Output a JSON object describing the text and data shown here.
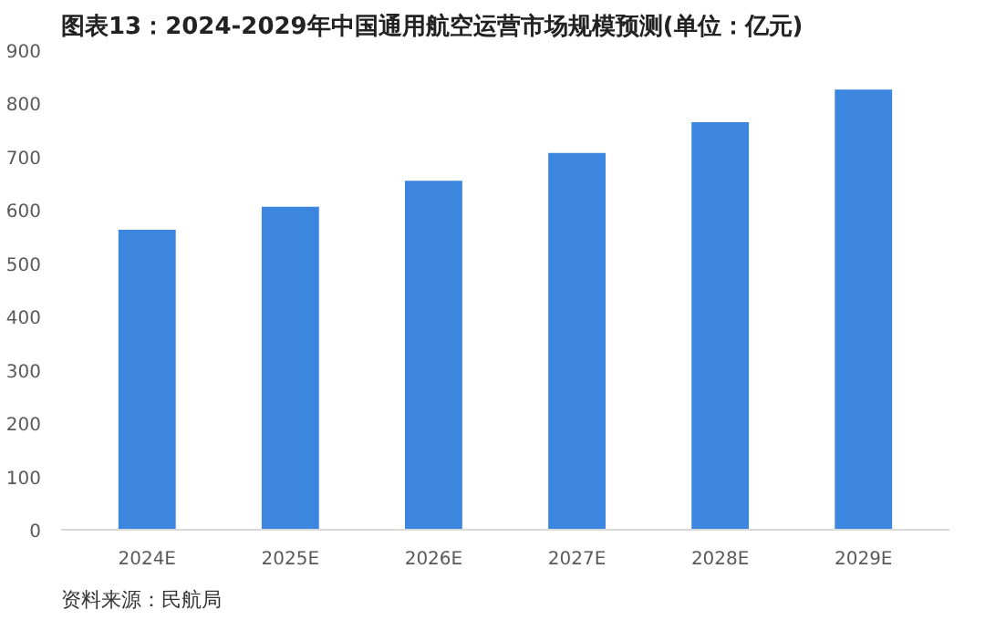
{
  "chart_data": {
    "type": "bar",
    "title": "图表13：2024-2029年中国通用航空运营市场规模预测(单位：亿元)",
    "categories": [
      "2024E",
      "2025E",
      "2026E",
      "2027E",
      "2028E",
      "2029E"
    ],
    "values": [
      563,
      606,
      655,
      707,
      765,
      826
    ],
    "color": "#3c86e0",
    "ylim": [
      0,
      900
    ],
    "yticks": [
      0,
      100,
      200,
      300,
      400,
      500,
      600,
      700,
      800,
      900
    ],
    "grid": false,
    "annotations": [
      "资料来源：民航局"
    ]
  }
}
